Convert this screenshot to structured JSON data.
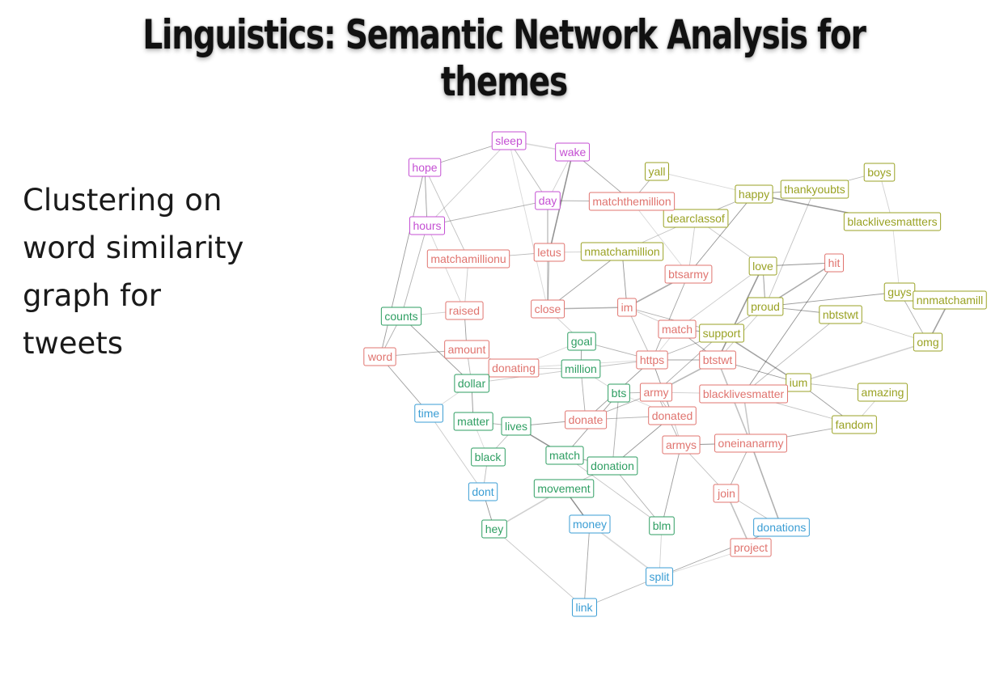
{
  "slide": {
    "title": "Linguistics: Semantic Network Analysis for themes",
    "caption": "Clustering on\nword similarity\ngraph for\ntweets"
  },
  "clusters": {
    "purple": {
      "color": "#c44fd3"
    },
    "red": {
      "color": "#e0746f"
    },
    "olive": {
      "color": "#9aa224"
    },
    "green": {
      "color": "#2e9e62"
    },
    "blue": {
      "color": "#3a9dd4"
    }
  },
  "nodes": [
    {
      "label": "sleep",
      "cluster": "purple"
    },
    {
      "label": "wake",
      "cluster": "purple"
    },
    {
      "label": "hope",
      "cluster": "purple"
    },
    {
      "label": "day",
      "cluster": "purple"
    },
    {
      "label": "hours",
      "cluster": "purple"
    },
    {
      "label": "yall",
      "cluster": "olive"
    },
    {
      "label": "happy",
      "cluster": "olive"
    },
    {
      "label": "thankyoubts",
      "cluster": "olive"
    },
    {
      "label": "boys",
      "cluster": "olive"
    },
    {
      "label": "dearclassof",
      "cluster": "olive"
    },
    {
      "label": "blacklivesmattters",
      "cluster": "olive"
    },
    {
      "label": "nmatchamillion",
      "cluster": "olive"
    },
    {
      "label": "love",
      "cluster": "olive"
    },
    {
      "label": "proud",
      "cluster": "olive"
    },
    {
      "label": "guys",
      "cluster": "olive"
    },
    {
      "label": "nnmatchamill",
      "cluster": "olive"
    },
    {
      "label": "nbtstwt",
      "cluster": "olive"
    },
    {
      "label": "support",
      "cluster": "olive"
    },
    {
      "label": "omg",
      "cluster": "olive"
    },
    {
      "label": "ium",
      "cluster": "olive"
    },
    {
      "label": "amazing",
      "cluster": "olive"
    },
    {
      "label": "fandom",
      "cluster": "olive"
    },
    {
      "label": "matchthemillion",
      "cluster": "red"
    },
    {
      "label": "matchamillionu",
      "cluster": "red"
    },
    {
      "label": "letus",
      "cluster": "red"
    },
    {
      "label": "btsarmy",
      "cluster": "red"
    },
    {
      "label": "hit",
      "cluster": "red"
    },
    {
      "label": "raised",
      "cluster": "red"
    },
    {
      "label": "close",
      "cluster": "red"
    },
    {
      "label": "im",
      "cluster": "red"
    },
    {
      "label": "match",
      "cluster": "red"
    },
    {
      "label": "word",
      "cluster": "red"
    },
    {
      "label": "amount",
      "cluster": "red"
    },
    {
      "label": "donating",
      "cluster": "red"
    },
    {
      "label": "https",
      "cluster": "red"
    },
    {
      "label": "btstwt",
      "cluster": "red"
    },
    {
      "label": "army",
      "cluster": "red"
    },
    {
      "label": "blacklivesmatter",
      "cluster": "red"
    },
    {
      "label": "donate",
      "cluster": "red"
    },
    {
      "label": "donated",
      "cluster": "red"
    },
    {
      "label": "armys",
      "cluster": "red"
    },
    {
      "label": "oneinanarmy",
      "cluster": "red"
    },
    {
      "label": "join",
      "cluster": "red"
    },
    {
      "label": "project",
      "cluster": "red"
    },
    {
      "label": "counts",
      "cluster": "green"
    },
    {
      "label": "goal",
      "cluster": "green"
    },
    {
      "label": "million",
      "cluster": "green"
    },
    {
      "label": "dollar",
      "cluster": "green"
    },
    {
      "label": "bts",
      "cluster": "green"
    },
    {
      "label": "matter",
      "cluster": "green"
    },
    {
      "label": "lives",
      "cluster": "green"
    },
    {
      "label": "black",
      "cluster": "green"
    },
    {
      "label": "match",
      "cluster": "green"
    },
    {
      "label": "donation",
      "cluster": "green"
    },
    {
      "label": "movement",
      "cluster": "green"
    },
    {
      "label": "hey",
      "cluster": "green"
    },
    {
      "label": "blm",
      "cluster": "green"
    },
    {
      "label": "time",
      "cluster": "blue"
    },
    {
      "label": "dont",
      "cluster": "blue"
    },
    {
      "label": "money",
      "cluster": "blue"
    },
    {
      "label": "donations",
      "cluster": "blue"
    },
    {
      "label": "split",
      "cluster": "blue"
    },
    {
      "label": "link",
      "cluster": "blue"
    }
  ],
  "edges": [
    [
      0,
      1
    ],
    [
      0,
      2
    ],
    [
      0,
      3
    ],
    [
      1,
      3
    ],
    [
      2,
      4
    ],
    [
      3,
      4
    ],
    [
      0,
      4
    ],
    [
      1,
      24
    ],
    [
      3,
      22
    ],
    [
      2,
      23
    ],
    [
      5,
      6
    ],
    [
      6,
      7
    ],
    [
      7,
      8
    ],
    [
      8,
      10
    ],
    [
      6,
      10
    ],
    [
      9,
      6
    ],
    [
      9,
      12
    ],
    [
      12,
      13
    ],
    [
      13,
      17
    ],
    [
      14,
      15
    ],
    [
      16,
      13
    ],
    [
      17,
      19
    ],
    [
      19,
      20
    ],
    [
      20,
      21
    ],
    [
      19,
      21
    ],
    [
      18,
      14
    ],
    [
      16,
      18
    ],
    [
      12,
      26
    ],
    [
      26,
      13
    ],
    [
      11,
      9
    ],
    [
      22,
      25
    ],
    [
      25,
      34
    ],
    [
      23,
      24
    ],
    [
      24,
      11
    ],
    [
      27,
      32
    ],
    [
      28,
      29
    ],
    [
      29,
      30
    ],
    [
      30,
      17
    ],
    [
      31,
      32
    ],
    [
      32,
      33
    ],
    [
      33,
      34
    ],
    [
      34,
      35
    ],
    [
      35,
      36
    ],
    [
      36,
      37
    ],
    [
      37,
      19
    ],
    [
      38,
      39
    ],
    [
      39,
      40
    ],
    [
      40,
      41
    ],
    [
      41,
      42
    ],
    [
      42,
      43
    ],
    [
      43,
      61
    ],
    [
      61,
      60
    ],
    [
      36,
      48
    ],
    [
      48,
      46
    ],
    [
      46,
      45
    ],
    [
      45,
      34
    ],
    [
      47,
      33
    ],
    [
      47,
      49
    ],
    [
      49,
      50
    ],
    [
      50,
      51
    ],
    [
      51,
      49
    ],
    [
      52,
      53
    ],
    [
      53,
      54
    ],
    [
      54,
      55
    ],
    [
      52,
      48
    ],
    [
      56,
      53
    ],
    [
      57,
      58
    ],
    [
      58,
      55
    ],
    [
      59,
      54
    ],
    [
      60,
      42
    ],
    [
      61,
      59
    ],
    [
      62,
      59
    ],
    [
      62,
      61
    ],
    [
      44,
      27
    ],
    [
      44,
      47
    ],
    [
      31,
      44
    ],
    [
      47,
      46
    ],
    [
      50,
      52
    ],
    [
      38,
      46
    ],
    [
      39,
      36
    ],
    [
      30,
      34
    ],
    [
      30,
      35
    ],
    [
      29,
      34
    ],
    [
      28,
      45
    ],
    [
      12,
      35
    ],
    [
      17,
      34
    ],
    [
      13,
      35
    ],
    [
      6,
      25
    ],
    [
      5,
      22
    ],
    [
      7,
      13
    ],
    [
      10,
      14
    ],
    [
      15,
      18
    ],
    [
      16,
      37
    ],
    [
      4,
      27
    ],
    [
      3,
      28
    ],
    [
      24,
      28
    ],
    [
      23,
      27
    ],
    [
      11,
      29
    ],
    [
      25,
      29
    ],
    [
      21,
      37
    ],
    [
      57,
      47
    ],
    [
      57,
      31
    ],
    [
      58,
      51
    ],
    [
      56,
      61
    ],
    [
      56,
      40
    ],
    [
      60,
      41
    ],
    [
      62,
      55
    ],
    [
      53,
      39
    ],
    [
      36,
      38
    ],
    [
      46,
      34
    ],
    [
      48,
      39
    ],
    [
      50,
      38
    ],
    [
      54,
      59
    ],
    [
      45,
      33
    ],
    [
      2,
      31
    ],
    [
      4,
      44
    ],
    [
      9,
      25
    ],
    [
      26,
      37
    ],
    [
      17,
      36
    ],
    [
      35,
      41
    ],
    [
      0,
      28
    ],
    [
      1,
      22
    ],
    [
      32,
      47
    ],
    [
      33,
      46
    ],
    [
      34,
      38
    ],
    [
      36,
      40
    ],
    [
      37,
      41
    ],
    [
      35,
      19
    ],
    [
      48,
      53
    ],
    [
      52,
      56
    ],
    [
      22,
      9
    ],
    [
      11,
      28
    ],
    [
      13,
      16
    ],
    [
      19,
      18
    ],
    [
      14,
      13
    ],
    [
      29,
      17
    ],
    [
      30,
      12
    ],
    [
      34,
      39
    ],
    [
      41,
      21
    ],
    [
      40,
      42
    ]
  ]
}
